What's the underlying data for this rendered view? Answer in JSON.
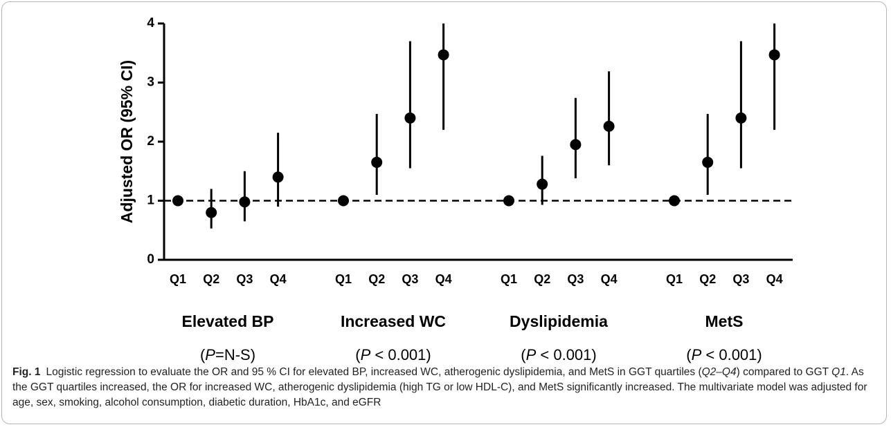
{
  "chart_data": {
    "type": "errorbar",
    "y_label": "Adjusted OR (95% CI)",
    "ylim": [
      0,
      4
    ],
    "yticks": [
      0,
      1,
      2,
      3,
      4
    ],
    "reference_line": 1,
    "color": "#000000",
    "groups": [
      {
        "name": "Elevated BP",
        "p_open": "(",
        "p_var": "P",
        "p_rest": "=N-S)",
        "categories": [
          "Q1",
          "Q2",
          "Q3",
          "Q4"
        ],
        "values": [
          1.0,
          0.8,
          0.98,
          1.4
        ],
        "lower": [
          1.0,
          0.53,
          0.65,
          0.9
        ],
        "upper": [
          1.0,
          1.2,
          1.5,
          2.15
        ]
      },
      {
        "name": "Increased WC",
        "p_open": "(",
        "p_var": "P",
        "p_rest": " < 0.001)",
        "categories": [
          "Q1",
          "Q2",
          "Q3",
          "Q4"
        ],
        "values": [
          1.0,
          1.65,
          2.4,
          3.47
        ],
        "lower": [
          1.0,
          1.1,
          1.55,
          2.2
        ],
        "upper": [
          1.0,
          2.47,
          3.7,
          4.0
        ]
      },
      {
        "name": "Dyslipidemia",
        "p_open": "(",
        "p_var": "P",
        "p_rest": " < 0.001)",
        "categories": [
          "Q1",
          "Q2",
          "Q3",
          "Q4"
        ],
        "values": [
          1.0,
          1.28,
          1.95,
          2.26
        ],
        "lower": [
          1.0,
          0.93,
          1.38,
          1.6
        ],
        "upper": [
          1.0,
          1.76,
          2.74,
          3.19
        ]
      },
      {
        "name": "MetS",
        "p_open": "(",
        "p_var": "P",
        "p_rest": " < 0.001)",
        "categories": [
          "Q1",
          "Q2",
          "Q3",
          "Q4"
        ],
        "values": [
          1.0,
          1.65,
          2.4,
          3.47
        ],
        "lower": [
          1.0,
          1.1,
          1.55,
          2.2
        ],
        "upper": [
          1.0,
          2.47,
          3.7,
          4.0
        ]
      }
    ]
  },
  "caption": {
    "label": "Fig. 1",
    "parts": [
      "Logistic regression to evaluate the OR and 95 % CI for elevated BP, increased WC, atherogenic dyslipidemia, and MetS in GGT quartiles (",
      "Q2–Q4",
      ") compared to GGT ",
      "Q1",
      ". As the GGT quartiles increased, the OR for increased WC, atherogenic dyslipidemia (high TG or low HDL-C), and MetS significantly increased. The multivariate model was adjusted for age, sex, smoking, alcohol consumption, diabetic duration, HbA1c, and eGFR"
    ]
  }
}
